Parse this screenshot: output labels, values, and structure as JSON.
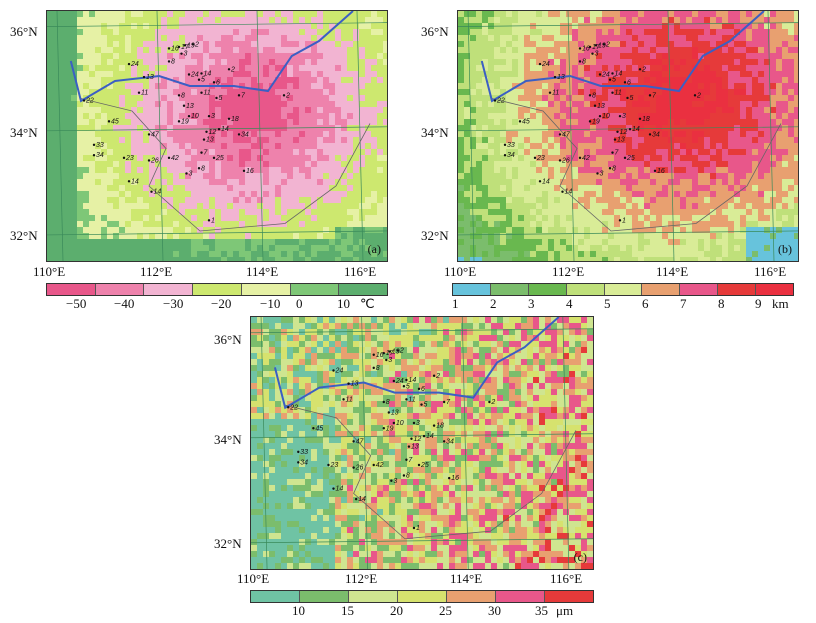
{
  "panels": {
    "a": {
      "tag": "(a)",
      "colorbar": {
        "colors": [
          "#e8578a",
          "#ee82ac",
          "#f2b4d2",
          "#cde86f",
          "#e6f1a5",
          "#7ec777",
          "#5cae6e"
        ],
        "ticks": [
          "−50",
          "−40",
          "−30",
          "−20",
          "−10",
          "0",
          "10"
        ],
        "unit": "℃"
      }
    },
    "b": {
      "tag": "(b)",
      "colorbar": {
        "colors": [
          "#67c3dc",
          "#7bbd6c",
          "#69b84f",
          "#bfe07a",
          "#d9ec97",
          "#e8a070",
          "#e8578a",
          "#e63a3a",
          "#ea3040"
        ],
        "ticks": [
          "1",
          "2",
          "3",
          "4",
          "5",
          "6",
          "7",
          "8",
          "9"
        ],
        "unit": "km"
      }
    },
    "c": {
      "tag": "(c)",
      "colorbar": {
        "colors": [
          "#6fc3a4",
          "#7bbd6c",
          "#cfe590",
          "#d6e26e",
          "#e8a070",
          "#e8578a",
          "#e63a3a"
        ],
        "ticks": [
          "10",
          "15",
          "20",
          "25",
          "30",
          "35"
        ],
        "unit": "μm"
      }
    }
  },
  "axes": {
    "lon_labels": [
      "110°E",
      "112°E",
      "114°E",
      "116°E"
    ],
    "lat_labels": [
      "36°N",
      "34°N",
      "32°N"
    ]
  },
  "stations": [
    {
      "lab": "16",
      "x": 112.3,
      "y": 35.6
    },
    {
      "lab": "17",
      "x": 112.5,
      "y": 35.63
    },
    {
      "lab": "19",
      "x": 112.62,
      "y": 35.66
    },
    {
      "lab": "2",
      "x": 112.78,
      "y": 35.68
    },
    {
      "lab": "3",
      "x": 112.55,
      "y": 35.5
    },
    {
      "lab": "8",
      "x": 112.3,
      "y": 35.35
    },
    {
      "lab": "24",
      "x": 111.5,
      "y": 35.3
    },
    {
      "lab": "13",
      "x": 111.8,
      "y": 35.05
    },
    {
      "lab": "24",
      "x": 112.7,
      "y": 35.1
    },
    {
      "lab": "14",
      "x": 112.95,
      "y": 35.12
    },
    {
      "lab": "11",
      "x": 111.7,
      "y": 34.75
    },
    {
      "lab": "5",
      "x": 112.9,
      "y": 35.0
    },
    {
      "lab": "6",
      "x": 113.2,
      "y": 34.95
    },
    {
      "lab": "2",
      "x": 113.5,
      "y": 35.2
    },
    {
      "lab": "22",
      "x": 110.6,
      "y": 34.6
    },
    {
      "lab": "8",
      "x": 112.5,
      "y": 34.7
    },
    {
      "lab": "11",
      "x": 112.95,
      "y": 34.75
    },
    {
      "lab": "5",
      "x": 113.25,
      "y": 34.65
    },
    {
      "lab": "7",
      "x": 113.7,
      "y": 34.7
    },
    {
      "lab": "2",
      "x": 114.6,
      "y": 34.7
    },
    {
      "lab": "13",
      "x": 112.6,
      "y": 34.5
    },
    {
      "lab": "10",
      "x": 112.7,
      "y": 34.3
    },
    {
      "lab": "3",
      "x": 113.1,
      "y": 34.3
    },
    {
      "lab": "19",
      "x": 112.5,
      "y": 34.2
    },
    {
      "lab": "12",
      "x": 113.05,
      "y": 34.0
    },
    {
      "lab": "18",
      "x": 113.5,
      "y": 34.25
    },
    {
      "lab": "45",
      "x": 111.1,
      "y": 34.2
    },
    {
      "lab": "14",
      "x": 113.3,
      "y": 34.05
    },
    {
      "lab": "47",
      "x": 111.9,
      "y": 33.95
    },
    {
      "lab": "13",
      "x": 113.0,
      "y": 33.85
    },
    {
      "lab": "34",
      "x": 113.7,
      "y": 33.95
    },
    {
      "lab": "33",
      "x": 110.8,
      "y": 33.75
    },
    {
      "lab": "34",
      "x": 110.8,
      "y": 33.55
    },
    {
      "lab": "23",
      "x": 111.4,
      "y": 33.5
    },
    {
      "lab": "26",
      "x": 111.9,
      "y": 33.45
    },
    {
      "lab": "42",
      "x": 112.3,
      "y": 33.5
    },
    {
      "lab": "7",
      "x": 112.95,
      "y": 33.6
    },
    {
      "lab": "25",
      "x": 113.2,
      "y": 33.5
    },
    {
      "lab": "16",
      "x": 113.8,
      "y": 33.25
    },
    {
      "lab": "14",
      "x": 111.5,
      "y": 33.05
    },
    {
      "lab": "14",
      "x": 111.95,
      "y": 32.85
    },
    {
      "lab": "3",
      "x": 112.65,
      "y": 33.2
    },
    {
      "lab": "8",
      "x": 112.9,
      "y": 33.3
    },
    {
      "lab": "1",
      "x": 113.1,
      "y": 32.3
    }
  ]
}
